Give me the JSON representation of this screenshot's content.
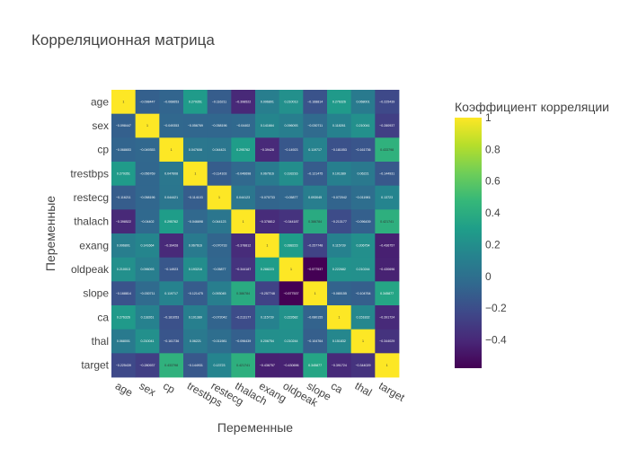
{
  "chart_data": {
    "type": "heatmap",
    "title": "Корреляционная матрица",
    "xlabel": "Переменные",
    "ylabel": "Переменные",
    "colorbar": {
      "title": "Коэффициент корреляции",
      "range": [
        -0.577537,
        1
      ],
      "ticks": [
        1,
        0.8,
        0.6,
        0.4,
        0.2,
        0,
        -0.2,
        -0.4
      ],
      "tick_labels": [
        "1",
        "0.8",
        "0.6",
        "0.4",
        "0.2",
        "0",
        "−0.2",
        "−0.4"
      ],
      "colorscale": "Viridis"
    },
    "variables": [
      "age",
      "sex",
      "cp",
      "trestbps",
      "restecg",
      "thalach",
      "exang",
      "oldpeak",
      "slope",
      "ca",
      "thal",
      "target"
    ],
    "values": [
      [
        1,
        -0.098447,
        -0.068653,
        0.279351,
        -0.116211,
        -0.398522,
        0.096801,
        0.210013,
        -0.168814,
        0.276326,
        0.068001,
        -0.225439
      ],
      [
        -0.098447,
        1,
        -0.049353,
        -0.056769,
        -0.058196,
        -0.04402,
        0.141664,
        0.096093,
        -0.030711,
        0.118261,
        0.210041,
        -0.280937
      ],
      [
        -0.068653,
        -0.049353,
        1,
        0.047608,
        0.044421,
        0.295762,
        -0.39428,
        -0.14923,
        0.119717,
        -0.181053,
        -0.161736,
        0.433798
      ],
      [
        0.279351,
        -0.056769,
        0.047608,
        1,
        -0.114103,
        -0.046698,
        0.067616,
        0.193216,
        -0.121475,
        0.101389,
        0.06221,
        -0.144931
      ],
      [
        -0.116211,
        -0.058196,
        0.044421,
        -0.114103,
        1,
        0.044123,
        -0.070733,
        -0.05877,
        0.093045,
        -0.072042,
        -0.011981,
        0.13723
      ],
      [
        -0.398522,
        -0.04402,
        0.295762,
        -0.046698,
        0.044123,
        1,
        -0.378812,
        -0.344187,
        0.386784,
        -0.213177,
        -0.096439,
        0.421741
      ],
      [
        0.096801,
        0.141664,
        -0.39428,
        0.067616,
        -0.070733,
        -0.378812,
        1,
        0.288223,
        -0.257748,
        0.115739,
        0.206754,
        -0.436757
      ],
      [
        0.210013,
        0.096093,
        -0.14923,
        0.193216,
        -0.05877,
        -0.344187,
        0.288223,
        1,
        -0.577537,
        0.222682,
        0.210244,
        -0.430696
      ],
      [
        -0.168814,
        -0.030711,
        0.119717,
        -0.121475,
        0.093045,
        0.386784,
        -0.257748,
        -0.577537,
        1,
        -0.080155,
        -0.104764,
        0.345877
      ],
      [
        0.276326,
        0.118261,
        -0.181053,
        0.101389,
        -0.072042,
        -0.213177,
        0.115739,
        0.222682,
        -0.080155,
        1,
        0.151832,
        -0.391724
      ],
      [
        0.068001,
        0.210041,
        -0.161736,
        0.06221,
        -0.011981,
        -0.096439,
        0.206754,
        0.210244,
        -0.104764,
        0.151832,
        1,
        -0.344029
      ],
      [
        -0.225439,
        -0.280937,
        0.433798,
        -0.144931,
        0.13723,
        0.421741,
        -0.436757,
        -0.430696,
        0.345877,
        -0.391724,
        -0.344029,
        1
      ]
    ]
  }
}
